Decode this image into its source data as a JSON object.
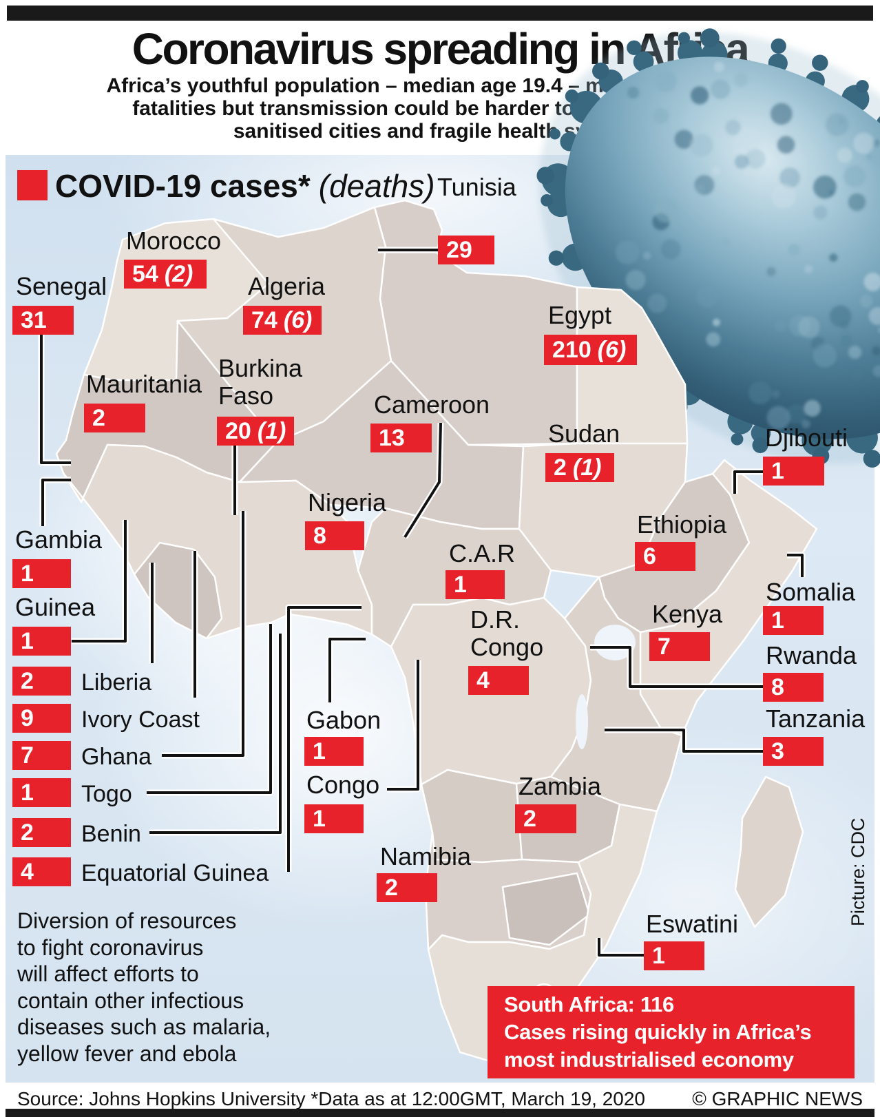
{
  "header": {
    "title": "Coronavirus spreading in Africa",
    "subtitle": "Africa’s youthful population – median age 19.4 – may help to reduce\nfatalities but transmission could be harder to prevent in poorly\nsanitised cities and fragile health systems"
  },
  "legend": {
    "label": "COVID-19 cases*",
    "deaths": "(deaths)"
  },
  "colors": {
    "case_red": "#e8222b",
    "ocean_blue": "#d8e6f2",
    "land_beige": "#e5ded7",
    "virus_teal": "#4a7a92"
  },
  "map": {
    "countries": {
      "tunisia": {
        "name": "Tunisia",
        "value": "29",
        "deaths": ""
      },
      "morocco": {
        "name": "Morocco",
        "value": "54",
        "deaths": "(2)"
      },
      "senegal": {
        "name": "Senegal",
        "value": "31",
        "deaths": ""
      },
      "algeria": {
        "name": "Algeria",
        "value": "74",
        "deaths": "(6)"
      },
      "egypt": {
        "name": "Egypt",
        "value": "210",
        "deaths": "(6)"
      },
      "mauritania": {
        "name": "Mauritania",
        "value": "2",
        "deaths": ""
      },
      "burkina_faso": {
        "name": "Burkina\nFaso",
        "value": "20",
        "deaths": "(1)"
      },
      "cameroon": {
        "name": "Cameroon",
        "value": "13",
        "deaths": ""
      },
      "sudan": {
        "name": "Sudan",
        "value": "2",
        "deaths": "(1)"
      },
      "djibouti": {
        "name": "Djibouti",
        "value": "1",
        "deaths": ""
      },
      "nigeria": {
        "name": "Nigeria",
        "value": "8",
        "deaths": ""
      },
      "ethiopia": {
        "name": "Ethiopia",
        "value": "6",
        "deaths": ""
      },
      "gambia": {
        "name": "Gambia",
        "value": "1",
        "deaths": ""
      },
      "car": {
        "name": "C.A.R",
        "value": "1",
        "deaths": ""
      },
      "somalia": {
        "name": "Somalia",
        "value": "1",
        "deaths": ""
      },
      "guinea": {
        "name": "Guinea",
        "value": "1",
        "deaths": ""
      },
      "kenya": {
        "name": "Kenya",
        "value": "7",
        "deaths": ""
      },
      "dr_congo": {
        "name": "D.R.\nCongo",
        "value": "4",
        "deaths": ""
      },
      "rwanda": {
        "name": "Rwanda",
        "value": "8",
        "deaths": ""
      },
      "tanzania": {
        "name": "Tanzania",
        "value": "3",
        "deaths": ""
      },
      "gabon": {
        "name": "Gabon",
        "value": "1",
        "deaths": ""
      },
      "congo": {
        "name": "Congo",
        "value": "1",
        "deaths": ""
      },
      "zambia": {
        "name": "Zambia",
        "value": "2",
        "deaths": ""
      },
      "namibia": {
        "name": "Namibia",
        "value": "2",
        "deaths": ""
      },
      "eswatini": {
        "name": "Eswatini",
        "value": "1",
        "deaths": ""
      }
    }
  },
  "list": [
    {
      "name": "Liberia",
      "value": "2"
    },
    {
      "name": "Ivory Coast",
      "value": "9"
    },
    {
      "name": "Ghana",
      "value": "7"
    },
    {
      "name": "Togo",
      "value": "1"
    },
    {
      "name": "Benin",
      "value": "2"
    },
    {
      "name": "Equatorial Guinea",
      "value": "4"
    }
  ],
  "south_africa": {
    "text": "South Africa: 116\nCases rising quickly in Africa’s\nmost industrialised economy"
  },
  "note": {
    "text": "Diversion of resources\nto fight coronavirus\nwill affect efforts to\ncontain other infectious\ndiseases such as malaria,\nyellow fever and ebola"
  },
  "picture_credit": "Picture: CDC",
  "footer": {
    "source": "Source: Johns Hopkins University *Data as at 12:00GMT, March 19, 2020",
    "credit": "© GRAPHIC NEWS"
  }
}
